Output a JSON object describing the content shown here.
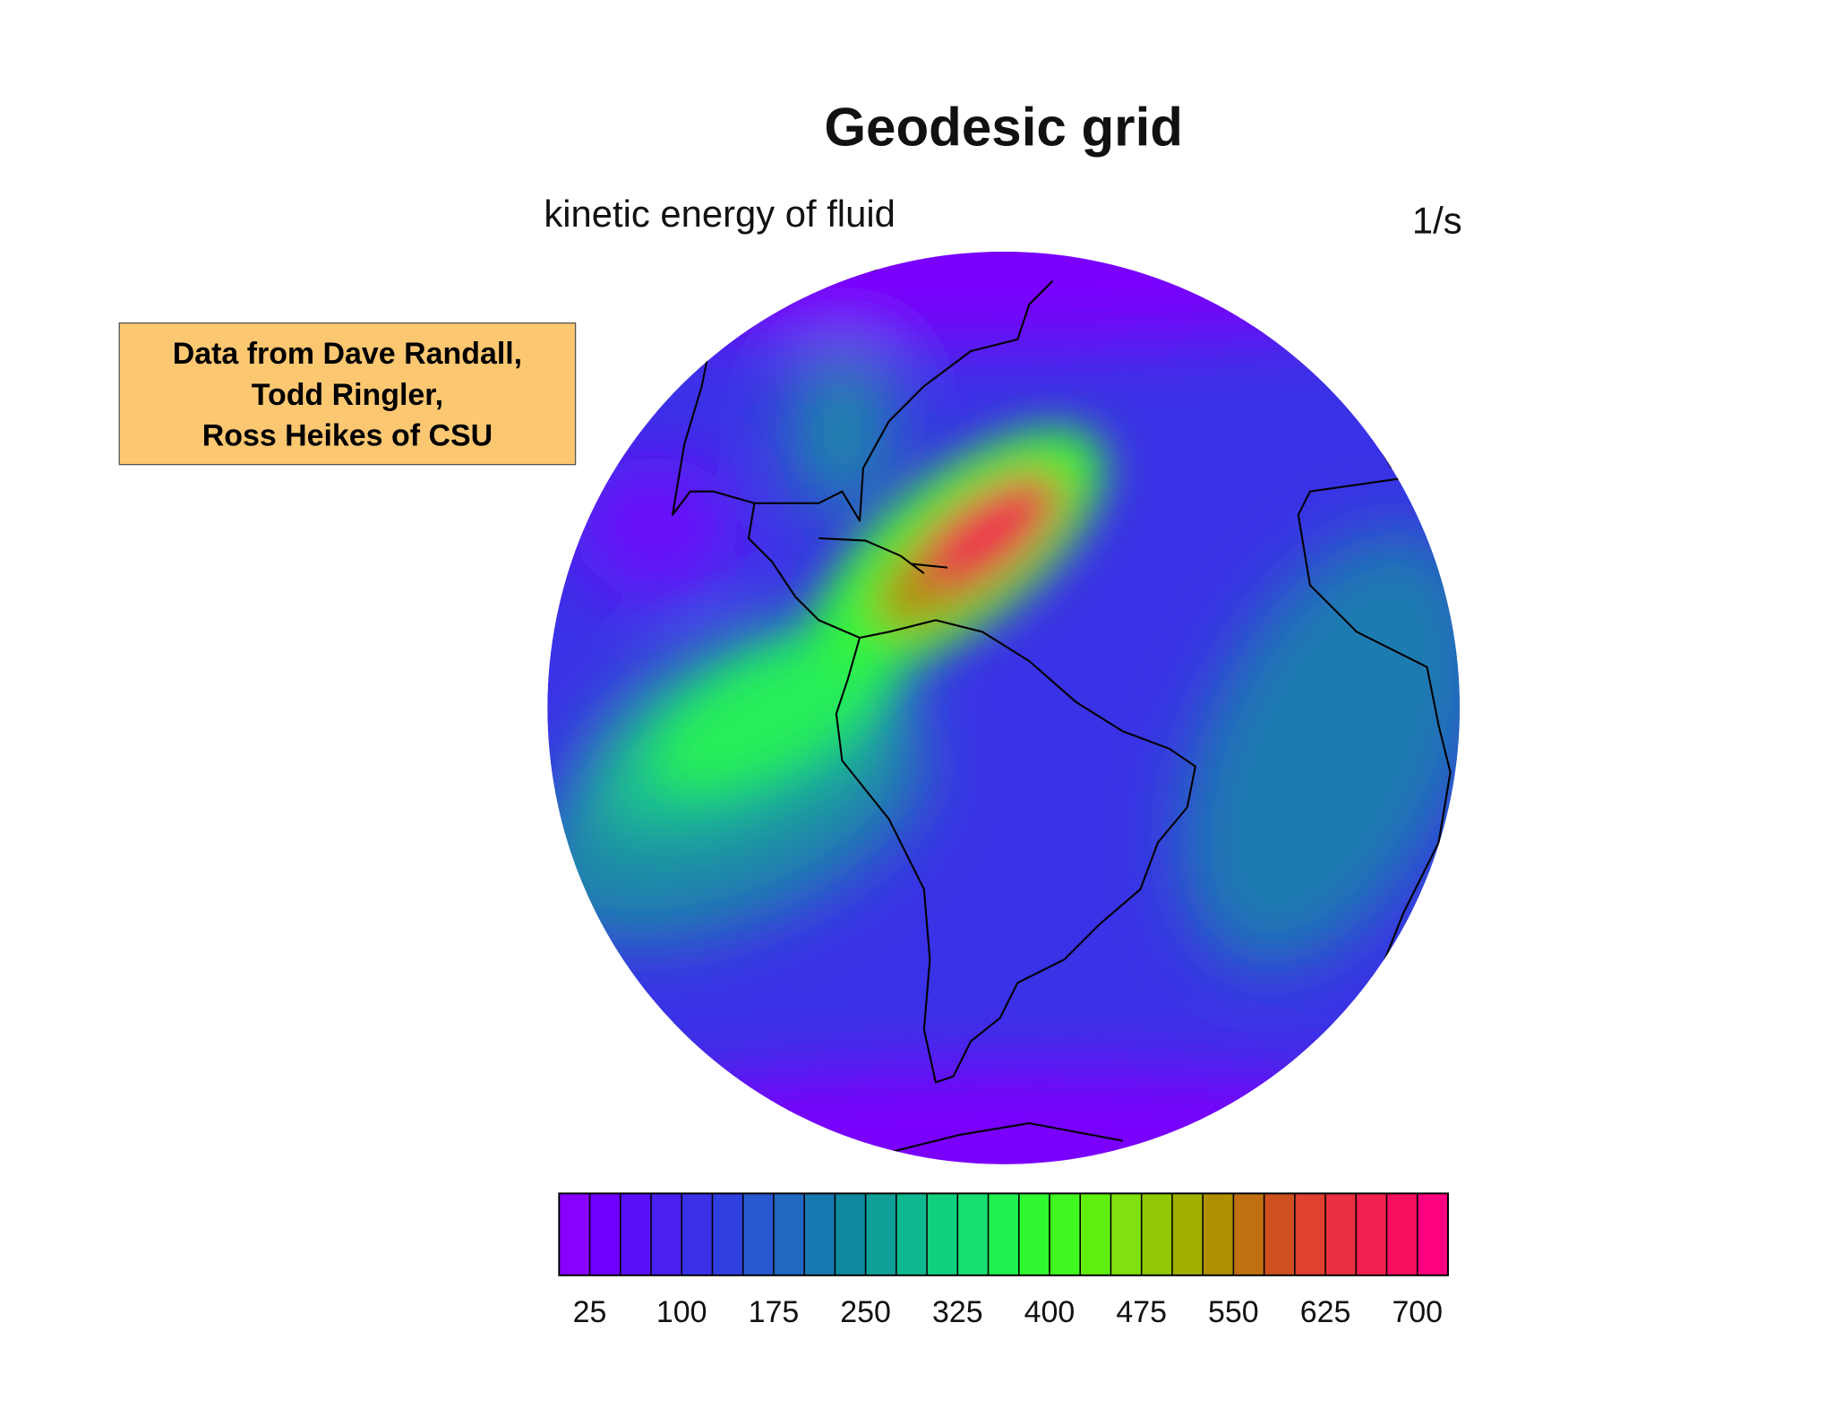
{
  "chart_data": {
    "type": "contour-map",
    "title": "Geodesic grid",
    "subtitle": "kinetic energy of fluid",
    "units": "1/s",
    "annotation": [
      "Data from Dave Randall,",
      "Todd Ringler,",
      "Ross Heikes of CSU"
    ],
    "colorbar": {
      "lim": [
        0,
        725
      ],
      "levels": [
        25,
        50,
        75,
        100,
        125,
        150,
        175,
        200,
        225,
        250,
        275,
        300,
        325,
        350,
        375,
        400,
        425,
        450,
        475,
        500,
        525,
        550,
        575,
        600,
        625,
        650,
        675,
        700
      ],
      "ticks": [
        25,
        100,
        175,
        250,
        325,
        400,
        475,
        550,
        625,
        700
      ],
      "colors": [
        "#8a00ff",
        "#7000ff",
        "#5a10f8",
        "#4a20f0",
        "#3a30e8",
        "#3040e0",
        "#2858d0",
        "#2068c0",
        "#1878b0",
        "#1088a0",
        "#10a098",
        "#10b890",
        "#10d080",
        "#18e070",
        "#20f050",
        "#30f830",
        "#40f820",
        "#60f010",
        "#80e010",
        "#90c808",
        "#a0b000",
        "#b09000",
        "#c07010",
        "#d05020",
        "#e04030",
        "#e83040",
        "#f02050",
        "#f81060",
        "#ff0080"
      ]
    }
  }
}
